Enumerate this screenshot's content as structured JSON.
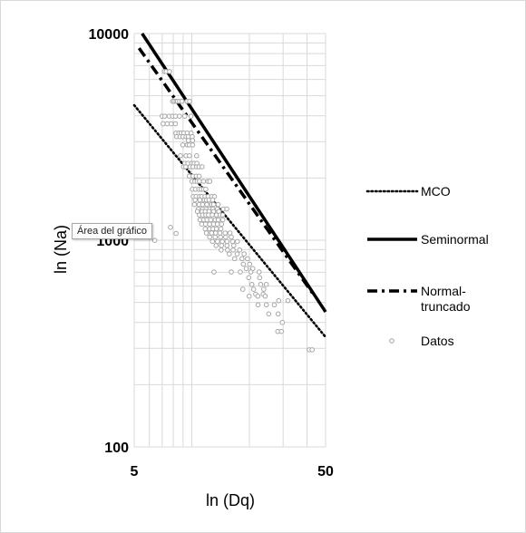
{
  "tooltip": "Área del gráfico",
  "chart_data": {
    "type": "scatter",
    "title": "",
    "xlabel": "ln (Dq)",
    "ylabel": "ln (Na)",
    "x_scale": "log",
    "y_scale": "log",
    "xlim": [
      5,
      50
    ],
    "ylim": [
      100,
      10000
    ],
    "x_ticks": [
      "5",
      "50"
    ],
    "y_ticks": [
      "100",
      "1000",
      "10000"
    ],
    "grid": "minor-log",
    "legend_position": "right",
    "colors": {
      "lines": "#000000",
      "markers": "#a6a6a6",
      "grid": "#d9d9d9"
    },
    "series": [
      {
        "name": "MCO",
        "kind": "line",
        "dash": "dotted",
        "x": [
          5,
          50
        ],
        "y": [
          4500,
          340
        ]
      },
      {
        "name": "Seminormal",
        "kind": "line",
        "dash": "solid",
        "x": [
          5.5,
          50
        ],
        "y": [
          10000,
          450
        ]
      },
      {
        "name": "Normal-\ntruncado",
        "kind": "line",
        "dash": "dashdot",
        "x": [
          5.3,
          43
        ],
        "y": [
          8500,
          550
        ]
      },
      {
        "name": "Datos",
        "kind": "scatter",
        "points": [
          [
            7.19,
            6552
          ],
          [
            7.35,
            6552
          ],
          [
            7.65,
            6552
          ],
          [
            7.94,
            4700
          ],
          [
            8.09,
            4700
          ],
          [
            8.28,
            4700
          ],
          [
            8.41,
            4700
          ],
          [
            8.63,
            4700
          ],
          [
            8.88,
            4700
          ],
          [
            9.44,
            4700
          ],
          [
            9.73,
            4700
          ],
          [
            7.0,
            3983
          ],
          [
            7.22,
            3983
          ],
          [
            7.62,
            3983
          ],
          [
            7.94,
            3983
          ],
          [
            8.21,
            3983
          ],
          [
            8.62,
            3983
          ],
          [
            9.19,
            3983
          ],
          [
            9.9,
            3983
          ],
          [
            7.08,
            3660
          ],
          [
            7.44,
            3660
          ],
          [
            7.8,
            3660
          ],
          [
            8.21,
            3660
          ],
          [
            8.26,
            3300
          ],
          [
            8.56,
            3300
          ],
          [
            8.8,
            3300
          ],
          [
            9.07,
            3300
          ],
          [
            9.46,
            3300
          ],
          [
            9.92,
            3300
          ],
          [
            8.33,
            3169
          ],
          [
            8.68,
            3169
          ],
          [
            8.99,
            3169
          ],
          [
            9.33,
            3169
          ],
          [
            9.59,
            3169
          ],
          [
            10.05,
            3169
          ],
          [
            9.59,
            3037
          ],
          [
            10.09,
            3037
          ],
          [
            8.97,
            2891
          ],
          [
            9.47,
            2891
          ],
          [
            9.71,
            2891
          ],
          [
            10.09,
            2891
          ],
          [
            8.72,
            2563
          ],
          [
            9.33,
            2563
          ],
          [
            9.72,
            2563
          ],
          [
            10.59,
            2563
          ],
          [
            9.19,
            2354
          ],
          [
            9.54,
            2354
          ],
          [
            9.98,
            2354
          ],
          [
            10.27,
            2354
          ],
          [
            10.63,
            2354
          ],
          [
            9.05,
            2266
          ],
          [
            9.3,
            2266
          ],
          [
            9.81,
            2266
          ],
          [
            10.15,
            2266
          ],
          [
            10.59,
            2266
          ],
          [
            10.9,
            2266
          ],
          [
            11.32,
            2266
          ],
          [
            9.7,
            2042
          ],
          [
            10.15,
            2042
          ],
          [
            10.55,
            2042
          ],
          [
            10.92,
            2042
          ],
          [
            10.0,
            1928
          ],
          [
            10.37,
            1928
          ],
          [
            10.67,
            1928
          ],
          [
            10.96,
            1928
          ],
          [
            11.51,
            1928
          ],
          [
            12.12,
            1928
          ],
          [
            12.41,
            1928
          ],
          [
            10.06,
            1764
          ],
          [
            10.45,
            1764
          ],
          [
            10.88,
            1764
          ],
          [
            11.19,
            1764
          ],
          [
            11.51,
            1764
          ],
          [
            11.83,
            1764
          ],
          [
            10.17,
            1627
          ],
          [
            10.53,
            1627
          ],
          [
            10.97,
            1627
          ],
          [
            11.27,
            1627
          ],
          [
            11.72,
            1627
          ],
          [
            12.16,
            1627
          ],
          [
            12.7,
            1627
          ],
          [
            13.13,
            1627
          ],
          [
            10.41,
            1565
          ],
          [
            11.02,
            1565
          ],
          [
            11.61,
            1565
          ],
          [
            11.93,
            1565
          ],
          [
            12.3,
            1565
          ],
          [
            12.84,
            1565
          ],
          [
            10.32,
            1488
          ],
          [
            10.92,
            1488
          ],
          [
            11.39,
            1488
          ],
          [
            11.98,
            1488
          ],
          [
            12.67,
            1488
          ],
          [
            13.0,
            1488
          ],
          [
            13.73,
            1488
          ],
          [
            10.8,
            1416
          ],
          [
            11.37,
            1416
          ],
          [
            11.89,
            1416
          ],
          [
            12.4,
            1416
          ],
          [
            12.88,
            1416
          ],
          [
            13.61,
            1416
          ],
          [
            14.6,
            1416
          ],
          [
            15.23,
            1416
          ],
          [
            10.69,
            1378
          ],
          [
            11.32,
            1378
          ],
          [
            11.76,
            1378
          ],
          [
            12.3,
            1378
          ],
          [
            12.97,
            1378
          ],
          [
            13.84,
            1378
          ],
          [
            10.96,
            1325
          ],
          [
            11.39,
            1325
          ],
          [
            11.84,
            1325
          ],
          [
            12.23,
            1325
          ],
          [
            12.79,
            1325
          ],
          [
            13.46,
            1325
          ],
          [
            14.05,
            1325
          ],
          [
            14.5,
            1325
          ],
          [
            11.03,
            1255
          ],
          [
            11.53,
            1255
          ],
          [
            12.0,
            1255
          ],
          [
            12.55,
            1255
          ],
          [
            13.24,
            1255
          ],
          [
            13.74,
            1255
          ],
          [
            14.52,
            1255
          ],
          [
            11.26,
            1197
          ],
          [
            11.8,
            1197
          ],
          [
            12.39,
            1197
          ],
          [
            13.0,
            1197
          ],
          [
            13.6,
            1197
          ],
          [
            14.29,
            1197
          ],
          [
            11.75,
            1135
          ],
          [
            12.37,
            1135
          ],
          [
            12.91,
            1135
          ],
          [
            13.46,
            1135
          ],
          [
            14.19,
            1135
          ],
          [
            11.92,
            1084
          ],
          [
            12.68,
            1084
          ],
          [
            13.33,
            1084
          ],
          [
            14.02,
            1084
          ],
          [
            14.94,
            1084
          ],
          [
            15.82,
            1084
          ],
          [
            12.39,
            1036
          ],
          [
            13.24,
            1036
          ],
          [
            14.13,
            1036
          ],
          [
            15.03,
            1036
          ],
          [
            16.08,
            1036
          ],
          [
            12.82,
            986
          ],
          [
            13.63,
            986
          ],
          [
            14.43,
            986
          ],
          [
            15.27,
            986
          ],
          [
            16.34,
            986
          ],
          [
            17.3,
            986
          ],
          [
            13.39,
            942
          ],
          [
            14.29,
            942
          ],
          [
            15.27,
            942
          ],
          [
            16.56,
            942
          ],
          [
            14.23,
            897
          ],
          [
            15.36,
            897
          ],
          [
            16.44,
            897
          ],
          [
            17.79,
            897
          ],
          [
            15.7,
            858
          ],
          [
            17.26,
            858
          ],
          [
            18.76,
            858
          ],
          [
            16.73,
            814
          ],
          [
            18.29,
            814
          ],
          [
            19.55,
            814
          ],
          [
            18.58,
            766
          ],
          [
            20.06,
            766
          ],
          [
            19.25,
            729
          ],
          [
            20.83,
            729
          ],
          [
            13.05,
            702
          ],
          [
            16.08,
            702
          ],
          [
            17.92,
            702
          ],
          [
            20.35,
            702
          ],
          [
            22.47,
            702
          ],
          [
            19.84,
            659
          ],
          [
            22.62,
            659
          ],
          [
            20.59,
            611
          ],
          [
            22.9,
            611
          ],
          [
            24.5,
            611
          ],
          [
            18.46,
            579
          ],
          [
            21.04,
            579
          ],
          [
            23.76,
            579
          ],
          [
            21.56,
            548
          ],
          [
            23.61,
            548
          ],
          [
            19.94,
            536
          ],
          [
            22.13,
            536
          ],
          [
            24.18,
            536
          ],
          [
            28.45,
            510
          ],
          [
            31.78,
            510
          ],
          [
            22.18,
            487
          ],
          [
            24.53,
            487
          ],
          [
            26.97,
            487
          ],
          [
            25.22,
            440
          ],
          [
            28.26,
            440
          ],
          [
            29.71,
            400
          ],
          [
            28.13,
            362
          ],
          [
            29.38,
            362
          ],
          [
            41.08,
            295
          ],
          [
            42.53,
            295
          ],
          [
            7.73,
            1154
          ],
          [
            8.27,
            1078
          ],
          [
            6.4,
            998
          ]
        ]
      }
    ]
  }
}
